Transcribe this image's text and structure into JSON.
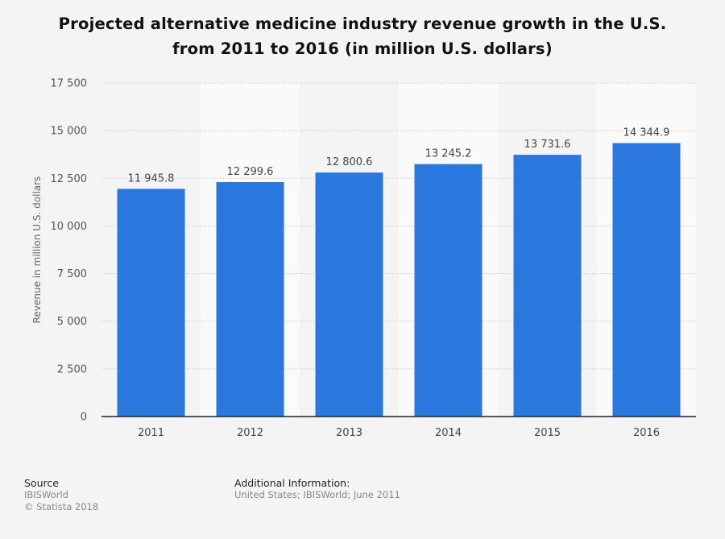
{
  "title_line1": "Projected alternative medicine industry revenue growth in the U.S.",
  "title_line2": "from 2011 to 2016 (in million U.S. dollars)",
  "chart_data": {
    "type": "bar",
    "categories": [
      "2011",
      "2012",
      "2013",
      "2014",
      "2015",
      "2016"
    ],
    "values": [
      11945.8,
      12299.6,
      12800.6,
      13245.2,
      13731.6,
      14344.9
    ],
    "value_labels": [
      "11 945.8",
      "12 299.6",
      "12 800.6",
      "13 245.2",
      "13 731.6",
      "14 344.9"
    ],
    "ylabel": "Revenue in million U.S. dollars",
    "ylim": [
      0,
      17500
    ],
    "yticks": [
      0,
      2500,
      5000,
      7500,
      10000,
      12500,
      15000,
      17500
    ],
    "ytick_labels": [
      "0",
      "2 500",
      "5 000",
      "7 500",
      "10 000",
      "12 500",
      "15 000",
      "17 500"
    ],
    "grid": true,
    "bar_color": "#2a78de"
  },
  "source": {
    "header": "Source",
    "lines": [
      "IBISWorld",
      "© Statista 2018"
    ]
  },
  "additional_info": {
    "header": "Additional Information:",
    "text": "United States; IBISWorld; June 2011"
  }
}
